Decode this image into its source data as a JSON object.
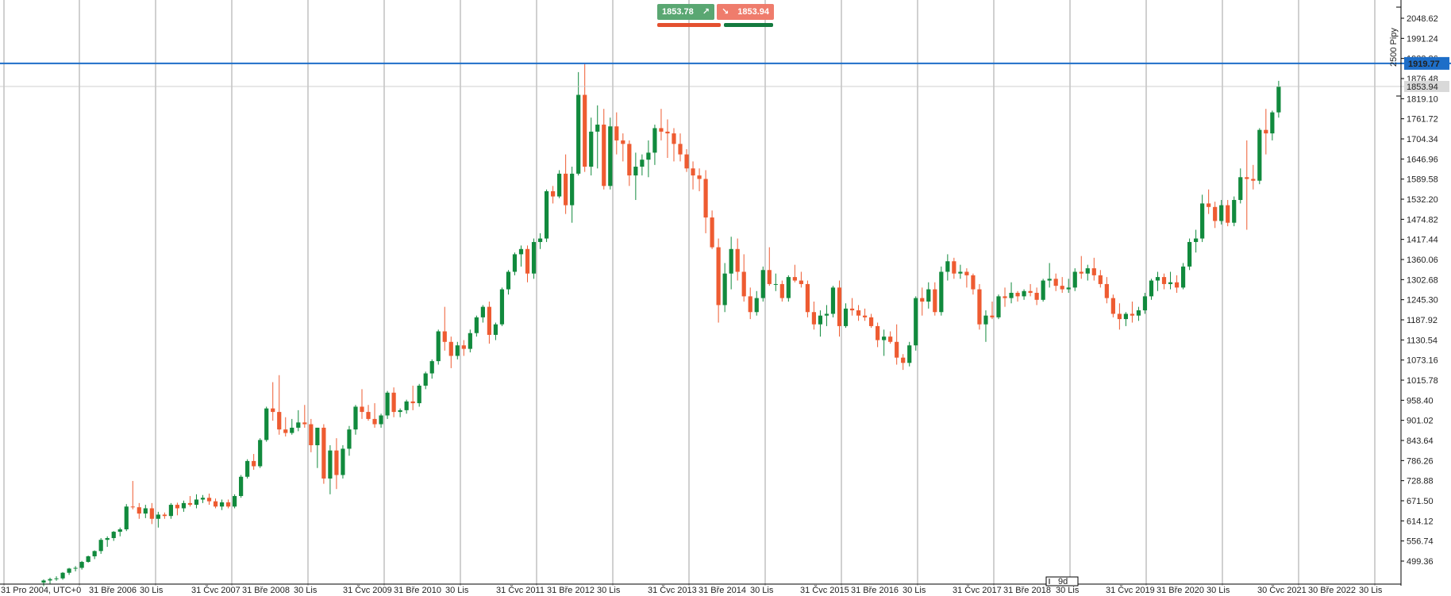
{
  "colors": {
    "up": "#118a3d",
    "down": "#ee5b31",
    "grid": "#8a8a8a",
    "axis": "#000000",
    "hline": "#1e6ec8",
    "price_tag": "#1e6ec8",
    "current_tag": "#d9d9d9"
  },
  "trade_panel": {
    "buy_price": "1853.78",
    "sell_price": "1853.94",
    "buy_icon": "arrow-up-right-icon",
    "sell_icon": "arrow-down-right-icon"
  },
  "price_axis": {
    "ticks": [
      "2048.62",
      "1991.24",
      "1933.86",
      "1876.48",
      "1819.10",
      "1761.72",
      "1704.34",
      "1646.96",
      "1589.58",
      "1532.20",
      "1474.82",
      "1417.44",
      "1360.06",
      "1302.68",
      "1245.30",
      "1187.92",
      "1130.54",
      "1073.16",
      "1015.78",
      "958.40",
      "901.02",
      "843.64",
      "786.26",
      "728.88",
      "671.50",
      "614.12",
      "556.74",
      "499.36"
    ],
    "horizontal_line_label": "1919.77",
    "current_price_label": "1853.94",
    "range_label": "2500 Pipy"
  },
  "time_axis": {
    "labels": [
      "31 Pro 2004, UTC+0",
      "31 Bře 2006",
      "30 Lis",
      "31 Čvc 2007",
      "31 Bře 2008",
      "30 Lis",
      "31 Čvc 2009",
      "31 Bře 2010",
      "30 Lis",
      "31 Čvc 2011",
      "31 Bře 2012",
      "30 Lis",
      "31 Čvc 2013",
      "31 Bře 2014",
      "30 Lis",
      "31 Čvc 2015",
      "31 Bře 2016",
      "30 Lis",
      "31 Čvc 2017",
      "31 Bře 2018",
      "30 Lis",
      "31 Čvc 2019",
      "31 Bře 2020",
      "30 Lis",
      "30 Čvc 2021",
      "30 Bře 2022",
      "30 Lis"
    ],
    "period_marker": "9d"
  },
  "chart_data": {
    "type": "candlestick",
    "timeframe": "monthly",
    "y_ticks": [
      2048.62,
      1991.24,
      1933.86,
      1876.48,
      1819.1,
      1761.72,
      1704.34,
      1646.96,
      1589.58,
      1532.2,
      1474.82,
      1417.44,
      1360.06,
      1302.68,
      1245.3,
      1187.92,
      1130.54,
      1073.16,
      1015.78,
      958.4,
      901.02,
      843.64,
      786.26,
      728.88,
      671.5,
      614.12,
      556.74,
      499.36
    ],
    "horizontal_line": 1919.77,
    "current_price": 1853.94,
    "candles": [
      {
        "o": 438,
        "h": 447,
        "l": 428,
        "c": 444
      },
      {
        "o": 444,
        "h": 452,
        "l": 435,
        "c": 448
      },
      {
        "o": 448,
        "h": 456,
        "l": 443,
        "c": 450
      },
      {
        "o": 450,
        "h": 468,
        "l": 446,
        "c": 466
      },
      {
        "o": 466,
        "h": 480,
        "l": 460,
        "c": 478
      },
      {
        "o": 478,
        "h": 485,
        "l": 470,
        "c": 480
      },
      {
        "o": 480,
        "h": 500,
        "l": 475,
        "c": 497
      },
      {
        "o": 497,
        "h": 515,
        "l": 495,
        "c": 513
      },
      {
        "o": 513,
        "h": 530,
        "l": 505,
        "c": 528
      },
      {
        "o": 528,
        "h": 565,
        "l": 520,
        "c": 560
      },
      {
        "o": 560,
        "h": 570,
        "l": 540,
        "c": 565
      },
      {
        "o": 565,
        "h": 585,
        "l": 557,
        "c": 583
      },
      {
        "o": 583,
        "h": 595,
        "l": 570,
        "c": 590
      },
      {
        "o": 590,
        "h": 662,
        "l": 585,
        "c": 655
      },
      {
        "o": 655,
        "h": 728,
        "l": 647,
        "c": 653
      },
      {
        "o": 653,
        "h": 665,
        "l": 620,
        "c": 635
      },
      {
        "o": 635,
        "h": 660,
        "l": 622,
        "c": 650
      },
      {
        "o": 650,
        "h": 665,
        "l": 605,
        "c": 620
      },
      {
        "o": 620,
        "h": 640,
        "l": 595,
        "c": 632
      },
      {
        "o": 632,
        "h": 638,
        "l": 620,
        "c": 628
      },
      {
        "o": 628,
        "h": 665,
        "l": 620,
        "c": 660
      },
      {
        "o": 660,
        "h": 666,
        "l": 630,
        "c": 650
      },
      {
        "o": 650,
        "h": 672,
        "l": 640,
        "c": 665
      },
      {
        "o": 665,
        "h": 685,
        "l": 655,
        "c": 660
      },
      {
        "o": 660,
        "h": 690,
        "l": 650,
        "c": 675
      },
      {
        "o": 675,
        "h": 688,
        "l": 665,
        "c": 680
      },
      {
        "o": 680,
        "h": 692,
        "l": 660,
        "c": 670
      },
      {
        "o": 670,
        "h": 678,
        "l": 650,
        "c": 655
      },
      {
        "o": 655,
        "h": 675,
        "l": 645,
        "c": 667
      },
      {
        "o": 667,
        "h": 675,
        "l": 650,
        "c": 655
      },
      {
        "o": 655,
        "h": 690,
        "l": 650,
        "c": 685
      },
      {
        "o": 685,
        "h": 745,
        "l": 680,
        "c": 740
      },
      {
        "o": 740,
        "h": 790,
        "l": 735,
        "c": 785
      },
      {
        "o": 785,
        "h": 805,
        "l": 760,
        "c": 770
      },
      {
        "o": 770,
        "h": 850,
        "l": 765,
        "c": 845
      },
      {
        "o": 845,
        "h": 940,
        "l": 840,
        "c": 935
      },
      {
        "o": 935,
        "h": 1010,
        "l": 900,
        "c": 925
      },
      {
        "o": 925,
        "h": 1030,
        "l": 860,
        "c": 875
      },
      {
        "o": 875,
        "h": 910,
        "l": 855,
        "c": 865
      },
      {
        "o": 865,
        "h": 905,
        "l": 860,
        "c": 880
      },
      {
        "o": 880,
        "h": 930,
        "l": 870,
        "c": 895
      },
      {
        "o": 895,
        "h": 945,
        "l": 880,
        "c": 890
      },
      {
        "o": 890,
        "h": 905,
        "l": 810,
        "c": 830
      },
      {
        "o": 830,
        "h": 880,
        "l": 765,
        "c": 880
      },
      {
        "o": 880,
        "h": 890,
        "l": 720,
        "c": 735
      },
      {
        "o": 735,
        "h": 830,
        "l": 690,
        "c": 815
      },
      {
        "o": 815,
        "h": 850,
        "l": 705,
        "c": 745
      },
      {
        "o": 745,
        "h": 830,
        "l": 735,
        "c": 820
      },
      {
        "o": 820,
        "h": 885,
        "l": 800,
        "c": 875
      },
      {
        "o": 875,
        "h": 945,
        "l": 860,
        "c": 940
      },
      {
        "o": 940,
        "h": 990,
        "l": 905,
        "c": 925
      },
      {
        "o": 925,
        "h": 945,
        "l": 900,
        "c": 905
      },
      {
        "o": 905,
        "h": 950,
        "l": 880,
        "c": 890
      },
      {
        "o": 890,
        "h": 920,
        "l": 880,
        "c": 915
      },
      {
        "o": 915,
        "h": 985,
        "l": 905,
        "c": 980
      },
      {
        "o": 980,
        "h": 995,
        "l": 910,
        "c": 925
      },
      {
        "o": 925,
        "h": 935,
        "l": 910,
        "c": 930
      },
      {
        "o": 930,
        "h": 960,
        "l": 920,
        "c": 955
      },
      {
        "o": 955,
        "h": 1000,
        "l": 930,
        "c": 950
      },
      {
        "o": 950,
        "h": 1005,
        "l": 940,
        "c": 1000
      },
      {
        "o": 1000,
        "h": 1040,
        "l": 990,
        "c": 1035
      },
      {
        "o": 1035,
        "h": 1075,
        "l": 1020,
        "c": 1070
      },
      {
        "o": 1070,
        "h": 1160,
        "l": 1060,
        "c": 1155
      },
      {
        "o": 1155,
        "h": 1225,
        "l": 1100,
        "c": 1125
      },
      {
        "o": 1125,
        "h": 1140,
        "l": 1050,
        "c": 1085
      },
      {
        "o": 1085,
        "h": 1125,
        "l": 1075,
        "c": 1115
      },
      {
        "o": 1115,
        "h": 1130,
        "l": 1085,
        "c": 1105
      },
      {
        "o": 1105,
        "h": 1160,
        "l": 1095,
        "c": 1150
      },
      {
        "o": 1150,
        "h": 1200,
        "l": 1140,
        "c": 1195
      },
      {
        "o": 1195,
        "h": 1230,
        "l": 1180,
        "c": 1225
      },
      {
        "o": 1225,
        "h": 1240,
        "l": 1120,
        "c": 1145
      },
      {
        "o": 1145,
        "h": 1180,
        "l": 1130,
        "c": 1175
      },
      {
        "o": 1175,
        "h": 1280,
        "l": 1170,
        "c": 1275
      },
      {
        "o": 1275,
        "h": 1330,
        "l": 1260,
        "c": 1325
      },
      {
        "o": 1325,
        "h": 1380,
        "l": 1315,
        "c": 1375
      },
      {
        "o": 1375,
        "h": 1400,
        "l": 1340,
        "c": 1390
      },
      {
        "o": 1390,
        "h": 1400,
        "l": 1295,
        "c": 1320
      },
      {
        "o": 1320,
        "h": 1420,
        "l": 1305,
        "c": 1410
      },
      {
        "o": 1410,
        "h": 1435,
        "l": 1390,
        "c": 1420
      },
      {
        "o": 1420,
        "h": 1560,
        "l": 1410,
        "c": 1555
      },
      {
        "o": 1555,
        "h": 1570,
        "l": 1520,
        "c": 1540
      },
      {
        "o": 1540,
        "h": 1615,
        "l": 1535,
        "c": 1605
      },
      {
        "o": 1605,
        "h": 1660,
        "l": 1490,
        "c": 1515
      },
      {
        "o": 1515,
        "h": 1625,
        "l": 1465,
        "c": 1605
      },
      {
        "o": 1605,
        "h": 1895,
        "l": 1600,
        "c": 1830
      },
      {
        "o": 1830,
        "h": 1920,
        "l": 1610,
        "c": 1625
      },
      {
        "o": 1625,
        "h": 1765,
        "l": 1600,
        "c": 1725
      },
      {
        "o": 1725,
        "h": 1800,
        "l": 1620,
        "c": 1745
      },
      {
        "o": 1745,
        "h": 1790,
        "l": 1560,
        "c": 1570
      },
      {
        "o": 1570,
        "h": 1765,
        "l": 1560,
        "c": 1740
      },
      {
        "o": 1740,
        "h": 1780,
        "l": 1660,
        "c": 1700
      },
      {
        "o": 1700,
        "h": 1720,
        "l": 1640,
        "c": 1690
      },
      {
        "o": 1690,
        "h": 1700,
        "l": 1570,
        "c": 1600
      },
      {
        "o": 1600,
        "h": 1665,
        "l": 1530,
        "c": 1625
      },
      {
        "o": 1625,
        "h": 1660,
        "l": 1600,
        "c": 1645
      },
      {
        "o": 1645,
        "h": 1700,
        "l": 1595,
        "c": 1665
      },
      {
        "o": 1665,
        "h": 1745,
        "l": 1630,
        "c": 1735
      },
      {
        "o": 1735,
        "h": 1790,
        "l": 1700,
        "c": 1725
      },
      {
        "o": 1725,
        "h": 1760,
        "l": 1650,
        "c": 1720
      },
      {
        "o": 1720,
        "h": 1735,
        "l": 1640,
        "c": 1690
      },
      {
        "o": 1690,
        "h": 1720,
        "l": 1640,
        "c": 1660
      },
      {
        "o": 1660,
        "h": 1675,
        "l": 1610,
        "c": 1620
      },
      {
        "o": 1620,
        "h": 1640,
        "l": 1560,
        "c": 1600
      },
      {
        "o": 1600,
        "h": 1620,
        "l": 1555,
        "c": 1590
      },
      {
        "o": 1590,
        "h": 1615,
        "l": 1435,
        "c": 1480
      },
      {
        "o": 1480,
        "h": 1500,
        "l": 1390,
        "c": 1395
      },
      {
        "o": 1395,
        "h": 1420,
        "l": 1180,
        "c": 1230
      },
      {
        "o": 1230,
        "h": 1350,
        "l": 1210,
        "c": 1320
      },
      {
        "o": 1320,
        "h": 1425,
        "l": 1275,
        "c": 1390
      },
      {
        "o": 1390,
        "h": 1420,
        "l": 1300,
        "c": 1325
      },
      {
        "o": 1325,
        "h": 1375,
        "l": 1240,
        "c": 1255
      },
      {
        "o": 1255,
        "h": 1280,
        "l": 1190,
        "c": 1210
      },
      {
        "o": 1210,
        "h": 1270,
        "l": 1200,
        "c": 1250
      },
      {
        "o": 1250,
        "h": 1340,
        "l": 1240,
        "c": 1330
      },
      {
        "o": 1330,
        "h": 1395,
        "l": 1285,
        "c": 1290
      },
      {
        "o": 1290,
        "h": 1320,
        "l": 1270,
        "c": 1290
      },
      {
        "o": 1290,
        "h": 1300,
        "l": 1240,
        "c": 1250
      },
      {
        "o": 1250,
        "h": 1315,
        "l": 1240,
        "c": 1310
      },
      {
        "o": 1310,
        "h": 1345,
        "l": 1295,
        "c": 1300
      },
      {
        "o": 1300,
        "h": 1325,
        "l": 1280,
        "c": 1290
      },
      {
        "o": 1290,
        "h": 1300,
        "l": 1195,
        "c": 1210
      },
      {
        "o": 1210,
        "h": 1240,
        "l": 1160,
        "c": 1175
      },
      {
        "o": 1175,
        "h": 1215,
        "l": 1140,
        "c": 1200
      },
      {
        "o": 1200,
        "h": 1230,
        "l": 1170,
        "c": 1205
      },
      {
        "o": 1205,
        "h": 1285,
        "l": 1195,
        "c": 1280
      },
      {
        "o": 1280,
        "h": 1300,
        "l": 1140,
        "c": 1170
      },
      {
        "o": 1170,
        "h": 1235,
        "l": 1165,
        "c": 1220
      },
      {
        "o": 1220,
        "h": 1250,
        "l": 1200,
        "c": 1215
      },
      {
        "o": 1215,
        "h": 1230,
        "l": 1185,
        "c": 1200
      },
      {
        "o": 1200,
        "h": 1220,
        "l": 1185,
        "c": 1195
      },
      {
        "o": 1195,
        "h": 1205,
        "l": 1165,
        "c": 1170
      },
      {
        "o": 1170,
        "h": 1180,
        "l": 1110,
        "c": 1130
      },
      {
        "o": 1130,
        "h": 1160,
        "l": 1085,
        "c": 1140
      },
      {
        "o": 1140,
        "h": 1155,
        "l": 1120,
        "c": 1125
      },
      {
        "o": 1125,
        "h": 1175,
        "l": 1060,
        "c": 1080
      },
      {
        "o": 1080,
        "h": 1090,
        "l": 1045,
        "c": 1065
      },
      {
        "o": 1065,
        "h": 1125,
        "l": 1055,
        "c": 1115
      },
      {
        "o": 1115,
        "h": 1255,
        "l": 1100,
        "c": 1250
      },
      {
        "o": 1250,
        "h": 1280,
        "l": 1200,
        "c": 1240
      },
      {
        "o": 1240,
        "h": 1295,
        "l": 1220,
        "c": 1275
      },
      {
        "o": 1275,
        "h": 1295,
        "l": 1200,
        "c": 1210
      },
      {
        "o": 1210,
        "h": 1340,
        "l": 1200,
        "c": 1325
      },
      {
        "o": 1325,
        "h": 1375,
        "l": 1300,
        "c": 1355
      },
      {
        "o": 1355,
        "h": 1365,
        "l": 1305,
        "c": 1320
      },
      {
        "o": 1320,
        "h": 1345,
        "l": 1305,
        "c": 1325
      },
      {
        "o": 1325,
        "h": 1335,
        "l": 1280,
        "c": 1315
      },
      {
        "o": 1315,
        "h": 1320,
        "l": 1260,
        "c": 1275
      },
      {
        "o": 1275,
        "h": 1290,
        "l": 1160,
        "c": 1175
      },
      {
        "o": 1175,
        "h": 1215,
        "l": 1125,
        "c": 1200
      },
      {
        "o": 1200,
        "h": 1240,
        "l": 1190,
        "c": 1195
      },
      {
        "o": 1195,
        "h": 1260,
        "l": 1190,
        "c": 1255
      },
      {
        "o": 1255,
        "h": 1280,
        "l": 1225,
        "c": 1250
      },
      {
        "o": 1250,
        "h": 1295,
        "l": 1235,
        "c": 1265
      },
      {
        "o": 1265,
        "h": 1270,
        "l": 1240,
        "c": 1255
      },
      {
        "o": 1255,
        "h": 1275,
        "l": 1245,
        "c": 1270
      },
      {
        "o": 1270,
        "h": 1290,
        "l": 1255,
        "c": 1265
      },
      {
        "o": 1265,
        "h": 1280,
        "l": 1230,
        "c": 1245
      },
      {
        "o": 1245,
        "h": 1305,
        "l": 1240,
        "c": 1300
      },
      {
        "o": 1300,
        "h": 1350,
        "l": 1280,
        "c": 1305
      },
      {
        "o": 1305,
        "h": 1320,
        "l": 1270,
        "c": 1285
      },
      {
        "o": 1285,
        "h": 1310,
        "l": 1265,
        "c": 1275
      },
      {
        "o": 1275,
        "h": 1305,
        "l": 1265,
        "c": 1280
      },
      {
        "o": 1280,
        "h": 1335,
        "l": 1270,
        "c": 1325
      },
      {
        "o": 1325,
        "h": 1370,
        "l": 1305,
        "c": 1320
      },
      {
        "o": 1320,
        "h": 1345,
        "l": 1300,
        "c": 1335
      },
      {
        "o": 1335,
        "h": 1365,
        "l": 1300,
        "c": 1315
      },
      {
        "o": 1315,
        "h": 1330,
        "l": 1280,
        "c": 1290
      },
      {
        "o": 1290,
        "h": 1310,
        "l": 1235,
        "c": 1250
      },
      {
        "o": 1250,
        "h": 1260,
        "l": 1195,
        "c": 1205
      },
      {
        "o": 1205,
        "h": 1235,
        "l": 1160,
        "c": 1190
      },
      {
        "o": 1190,
        "h": 1210,
        "l": 1170,
        "c": 1205
      },
      {
        "o": 1205,
        "h": 1240,
        "l": 1180,
        "c": 1200
      },
      {
        "o": 1200,
        "h": 1225,
        "l": 1185,
        "c": 1215
      },
      {
        "o": 1215,
        "h": 1265,
        "l": 1205,
        "c": 1255
      },
      {
        "o": 1255,
        "h": 1305,
        "l": 1245,
        "c": 1300
      },
      {
        "o": 1300,
        "h": 1325,
        "l": 1270,
        "c": 1310
      },
      {
        "o": 1310,
        "h": 1320,
        "l": 1275,
        "c": 1290
      },
      {
        "o": 1290,
        "h": 1325,
        "l": 1275,
        "c": 1295
      },
      {
        "o": 1295,
        "h": 1315,
        "l": 1265,
        "c": 1280
      },
      {
        "o": 1280,
        "h": 1350,
        "l": 1275,
        "c": 1340
      },
      {
        "o": 1340,
        "h": 1420,
        "l": 1330,
        "c": 1410
      },
      {
        "o": 1410,
        "h": 1445,
        "l": 1380,
        "c": 1420
      },
      {
        "o": 1420,
        "h": 1545,
        "l": 1410,
        "c": 1520
      },
      {
        "o": 1520,
        "h": 1560,
        "l": 1490,
        "c": 1510
      },
      {
        "o": 1510,
        "h": 1525,
        "l": 1450,
        "c": 1470
      },
      {
        "o": 1470,
        "h": 1530,
        "l": 1460,
        "c": 1515
      },
      {
        "o": 1515,
        "h": 1530,
        "l": 1455,
        "c": 1465
      },
      {
        "o": 1465,
        "h": 1540,
        "l": 1455,
        "c": 1530
      },
      {
        "o": 1530,
        "h": 1620,
        "l": 1520,
        "c": 1595
      },
      {
        "o": 1595,
        "h": 1700,
        "l": 1445,
        "c": 1590
      },
      {
        "o": 1590,
        "h": 1630,
        "l": 1560,
        "c": 1585
      },
      {
        "o": 1585,
        "h": 1735,
        "l": 1575,
        "c": 1730
      },
      {
        "o": 1730,
        "h": 1790,
        "l": 1660,
        "c": 1720
      },
      {
        "o": 1720,
        "h": 1785,
        "l": 1700,
        "c": 1780
      },
      {
        "o": 1780,
        "h": 1870,
        "l": 1765,
        "c": 1854
      }
    ]
  }
}
